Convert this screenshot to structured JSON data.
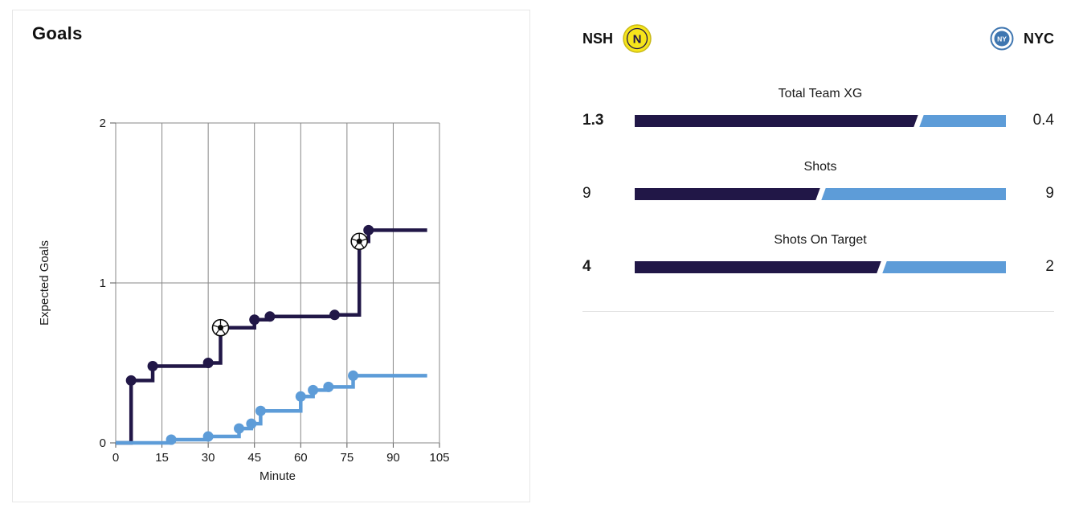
{
  "chart_data": {
    "type": "line",
    "subtype": "step-cumulative-xg",
    "title": "Goals",
    "xlabel": "Minute",
    "ylabel": "Expected Goals",
    "xlim": [
      0,
      105
    ],
    "ylim": [
      0,
      2
    ],
    "xticks": [
      0,
      15,
      30,
      45,
      60,
      75,
      90,
      105
    ],
    "yticks": [
      0,
      1,
      2
    ],
    "grid": true,
    "grid_color": "#878787",
    "series": [
      {
        "name": "NSH",
        "color": "#211747",
        "end_x": 101,
        "points": [
          {
            "x": 5,
            "y": 0.39
          },
          {
            "x": 12,
            "y": 0.48
          },
          {
            "x": 30,
            "y": 0.5
          },
          {
            "x": 34,
            "y": 0.72,
            "goal": true
          },
          {
            "x": 45,
            "y": 0.77
          },
          {
            "x": 50,
            "y": 0.79
          },
          {
            "x": 71,
            "y": 0.8
          },
          {
            "x": 79,
            "y": 1.26,
            "goal": true
          },
          {
            "x": 82,
            "y": 1.33
          }
        ]
      },
      {
        "name": "NYC",
        "color": "#5d9cd8",
        "end_x": 101,
        "points": [
          {
            "x": 18,
            "y": 0.02
          },
          {
            "x": 30,
            "y": 0.04
          },
          {
            "x": 40,
            "y": 0.09
          },
          {
            "x": 44,
            "y": 0.12
          },
          {
            "x": 47,
            "y": 0.2
          },
          {
            "x": 60,
            "y": 0.29
          },
          {
            "x": 64,
            "y": 0.33
          },
          {
            "x": 69,
            "y": 0.35
          },
          {
            "x": 77,
            "y": 0.42
          }
        ]
      }
    ]
  },
  "panel_stats": {
    "home": {
      "abbr": "NSH",
      "color": "#211747",
      "badge": "nashville-sc-badge",
      "badge_primary": "#f6e51b",
      "badge_secondary": "#211747",
      "badge_monogram": "N"
    },
    "away": {
      "abbr": "NYC",
      "color": "#5d9cd8",
      "badge": "nycfc-badge",
      "badge_primary": "#3f76b0",
      "badge_secondary": "#ffffff",
      "badge_monogram": "NY"
    },
    "rows": [
      {
        "label": "Total Team XG",
        "home_value": "1.3",
        "away_value": "0.4",
        "home_num": 1.3,
        "away_num": 0.4,
        "home_bold": true,
        "away_bold": false
      },
      {
        "label": "Shots",
        "home_value": "9",
        "away_value": "9",
        "home_num": 9,
        "away_num": 9,
        "home_bold": false,
        "away_bold": false
      },
      {
        "label": "Shots On Target",
        "home_value": "4",
        "away_value": "2",
        "home_num": 4,
        "away_num": 2,
        "home_bold": true,
        "away_bold": false
      }
    ]
  }
}
